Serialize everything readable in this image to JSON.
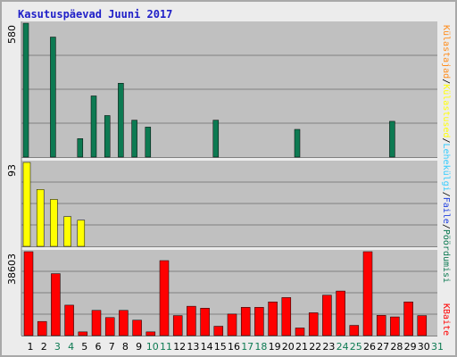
{
  "title": "Kasutuspäevad Juuni 2017",
  "chart_data": [
    {
      "type": "bar",
      "categories": [
        "1",
        "2",
        "3",
        "4",
        "5",
        "6",
        "7",
        "8",
        "9",
        "10",
        "11",
        "12",
        "13",
        "14",
        "15",
        "16",
        "17",
        "18",
        "19",
        "20",
        "21",
        "22",
        "23",
        "24",
        "25",
        "26",
        "27",
        "28",
        "29",
        "30",
        "31"
      ],
      "ymax_label": "580",
      "ylim": [
        0,
        580
      ],
      "legend": [
        "Külastajad",
        "Külastused",
        "Lehekülgi",
        "Faile",
        "Pöördumisi"
      ],
      "legend_separator": "/",
      "series": [
        {
          "name": "Pöördumisi",
          "color": "#0d7a52",
          "values": [
            580,
            0,
            520,
            0,
            80,
            265,
            180,
            320,
            160,
            130,
            0,
            0,
            0,
            0,
            160,
            0,
            0,
            0,
            0,
            0,
            120,
            0,
            0,
            0,
            0,
            0,
            0,
            155,
            0,
            0,
            0
          ]
        },
        {
          "name": "Faile",
          "color": "#2040e0",
          "values": [
            0,
            0,
            0,
            0,
            0,
            0,
            0,
            0,
            0,
            0,
            0,
            0,
            0,
            0,
            0,
            0,
            0,
            0,
            0,
            0,
            0,
            0,
            0,
            0,
            0,
            0,
            0,
            0,
            0,
            0,
            0
          ]
        },
        {
          "name": "Lehekülgi",
          "color": "#33ccff",
          "values": [
            0,
            0,
            0,
            0,
            0,
            0,
            0,
            0,
            0,
            0,
            0,
            0,
            0,
            0,
            0,
            0,
            0,
            0,
            0,
            0,
            0,
            0,
            0,
            0,
            0,
            0,
            0,
            0,
            0,
            0,
            0
          ]
        }
      ]
    },
    {
      "type": "bar",
      "categories": [
        "1",
        "2",
        "3",
        "4",
        "5",
        "6",
        "7",
        "8",
        "9",
        "10",
        "11",
        "12",
        "13",
        "14",
        "15",
        "16",
        "17",
        "18",
        "19",
        "20",
        "21",
        "22",
        "23",
        "24",
        "25",
        "26",
        "27",
        "28",
        "29",
        "30",
        "31"
      ],
      "ymax_label": "93",
      "ylim": [
        0,
        93
      ],
      "series": [
        {
          "name": "Külastused",
          "color": "#ffff00",
          "values": [
            93,
            63,
            52,
            33,
            29,
            0,
            0,
            0,
            0,
            0,
            0,
            0,
            0,
            0,
            0,
            0,
            0,
            0,
            0,
            0,
            0,
            0,
            0,
            0,
            0,
            0,
            0,
            0,
            0,
            0,
            0
          ]
        },
        {
          "name": "Külastajad",
          "color": "#ff8c1a",
          "values": [
            0,
            0,
            0,
            0,
            0,
            0,
            0,
            0,
            0,
            0,
            0,
            0,
            0,
            0,
            0,
            0,
            0,
            0,
            0,
            0,
            0,
            0,
            0,
            0,
            0,
            0,
            0,
            0,
            0,
            0,
            0
          ]
        }
      ]
    },
    {
      "type": "bar",
      "categories": [
        "1",
        "2",
        "3",
        "4",
        "5",
        "6",
        "7",
        "8",
        "9",
        "10",
        "11",
        "12",
        "13",
        "14",
        "15",
        "16",
        "17",
        "18",
        "19",
        "20",
        "21",
        "22",
        "23",
        "24",
        "25",
        "26",
        "27",
        "28",
        "29",
        "30",
        "31"
      ],
      "ymax_label": "38603",
      "ylim": [
        0,
        38603
      ],
      "legend": [
        "KBaite"
      ],
      "series": [
        {
          "name": "KBaite",
          "color": "#ff0000",
          "values": [
            38603,
            6500,
            28500,
            14000,
            1700,
            11600,
            8300,
            11600,
            7100,
            1700,
            34500,
            9200,
            13500,
            12600,
            4300,
            9900,
            13000,
            13000,
            15500,
            17500,
            3500,
            10500,
            18600,
            20500,
            4700,
            38603,
            9300,
            8600,
            15500,
            9200,
            0
          ]
        }
      ]
    }
  ],
  "xaxis": {
    "labels": [
      "1",
      "2",
      "3",
      "4",
      "5",
      "6",
      "7",
      "8",
      "9",
      "10",
      "11",
      "12",
      "13",
      "14",
      "15",
      "16",
      "17",
      "18",
      "19",
      "20",
      "21",
      "22",
      "23",
      "24",
      "25",
      "26",
      "27",
      "28",
      "29",
      "30",
      "31"
    ],
    "weekend_days": [
      "3",
      "4",
      "10",
      "11",
      "17",
      "18",
      "24",
      "25",
      "31"
    ],
    "weekday_color": "#000000",
    "weekend_color": "#0d7a52"
  }
}
